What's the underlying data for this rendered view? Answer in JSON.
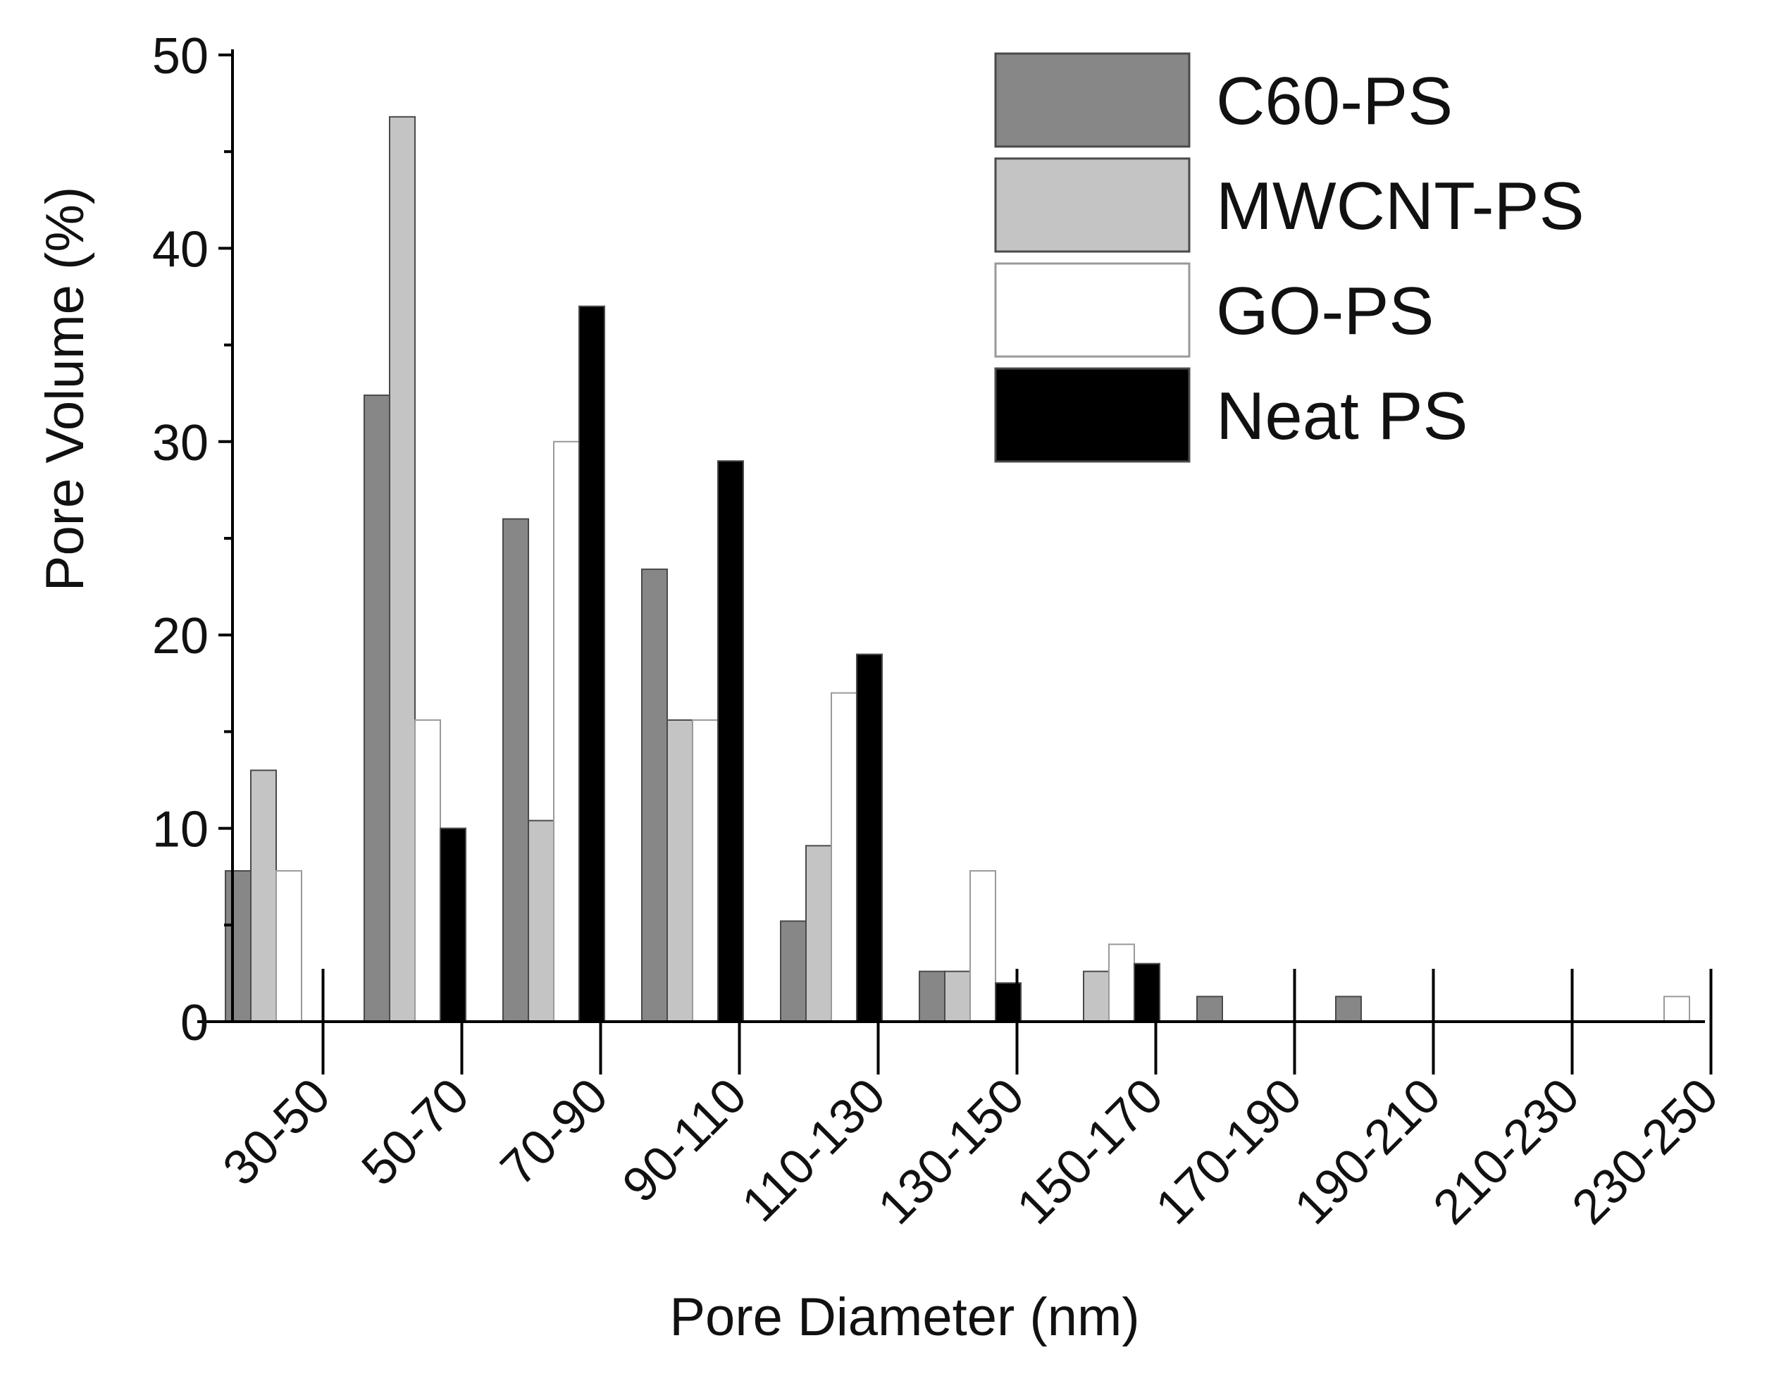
{
  "chart_data": {
    "type": "bar",
    "title": "",
    "xlabel": "Pore Diameter (nm)",
    "ylabel": "Pore Volume (%)",
    "ylim": [
      0,
      50
    ],
    "yticks": [
      0,
      10,
      20,
      30,
      40,
      50
    ],
    "categories": [
      "30-50",
      "50-70",
      "70-90",
      "90-110",
      "110-130",
      "130-150",
      "150-170",
      "170-190",
      "190-210",
      "210-230",
      "230-250"
    ],
    "series": [
      {
        "name": "C60-PS",
        "color": "#878787",
        "values": [
          7.8,
          32.4,
          26.0,
          23.4,
          5.2,
          2.6,
          0,
          1.3,
          1.3,
          0,
          0
        ]
      },
      {
        "name": "MWCNT-PS",
        "color": "#c4c4c4",
        "values": [
          13.0,
          46.8,
          10.4,
          15.6,
          9.1,
          2.6,
          2.6,
          0,
          0,
          0,
          0
        ]
      },
      {
        "name": "GO-PS",
        "color": "#ffffff",
        "values": [
          7.8,
          15.6,
          30.0,
          15.6,
          17.0,
          7.8,
          4.0,
          0,
          0,
          0,
          1.3
        ]
      },
      {
        "name": "Neat PS",
        "color": "#000000",
        "values": [
          0,
          10.0,
          37.0,
          29.0,
          19.0,
          2.0,
          3.0,
          0,
          0,
          0,
          0
        ]
      }
    ],
    "legend_position": "top-right",
    "grid": false
  }
}
